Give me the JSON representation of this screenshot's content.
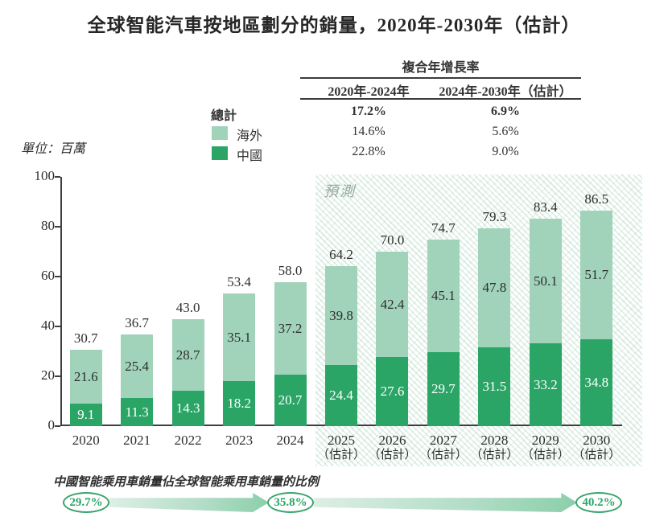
{
  "title": "全球智能汽車按地區劃分的銷量，2020年-2030年（估計）",
  "unit_label": "單位：百萬",
  "cagr_table": {
    "header": "複合年增長率",
    "columns": [
      "2020年-2024年",
      "2024年-2030年（估計）"
    ],
    "rows": [
      {
        "label": "總計",
        "values": [
          "17.2%",
          "6.9%"
        ]
      },
      {
        "label": "海外",
        "values": [
          "14.6%",
          "5.6%"
        ],
        "swatch": "#a0d3ba"
      },
      {
        "label": "中國",
        "values": [
          "22.8%",
          "9.0%"
        ],
        "swatch": "#2aa566"
      }
    ]
  },
  "chart_data": {
    "type": "bar",
    "stacked": true,
    "title": "全球智能汽車按地區劃分的銷量，2020年-2030年（估計）",
    "unit": "百萬",
    "categories": [
      "2020",
      "2021",
      "2022",
      "2023",
      "2024",
      "2025",
      "2026",
      "2027",
      "2028",
      "2029",
      "2030"
    ],
    "estimate_label": "（估計）",
    "estimate_from_index": 5,
    "forecast_label": "預測",
    "series": [
      {
        "name": "中國",
        "color": "#2aa566",
        "values": [
          9.1,
          11.3,
          14.3,
          18.2,
          20.7,
          24.4,
          27.6,
          29.7,
          31.5,
          33.2,
          34.8
        ]
      },
      {
        "name": "海外",
        "color": "#a0d3ba",
        "values": [
          21.6,
          25.4,
          28.7,
          35.1,
          37.2,
          39.8,
          42.4,
          45.1,
          47.8,
          50.1,
          51.7
        ]
      }
    ],
    "totals": [
      30.7,
      36.7,
      43.0,
      53.4,
      58.0,
      64.2,
      70.0,
      74.7,
      79.3,
      83.4,
      86.5
    ],
    "ylim": [
      0,
      100
    ],
    "yticks": [
      0,
      20,
      40,
      60,
      80,
      100
    ],
    "grid": false,
    "legend_position": "top-left-of-cagr-table"
  },
  "footer": {
    "note": "中國智能乘用車銷量佔全球智能乘用車銷量的比例",
    "share_points": [
      "29.7%",
      "35.8%",
      "40.2%"
    ]
  },
  "colors": {
    "china": "#2aa566",
    "overseas": "#a0d3ba",
    "accent_green": "#3aa36b",
    "hatch_line": "#dceae3",
    "axis": "#3f3f3f",
    "text": "#333333"
  }
}
